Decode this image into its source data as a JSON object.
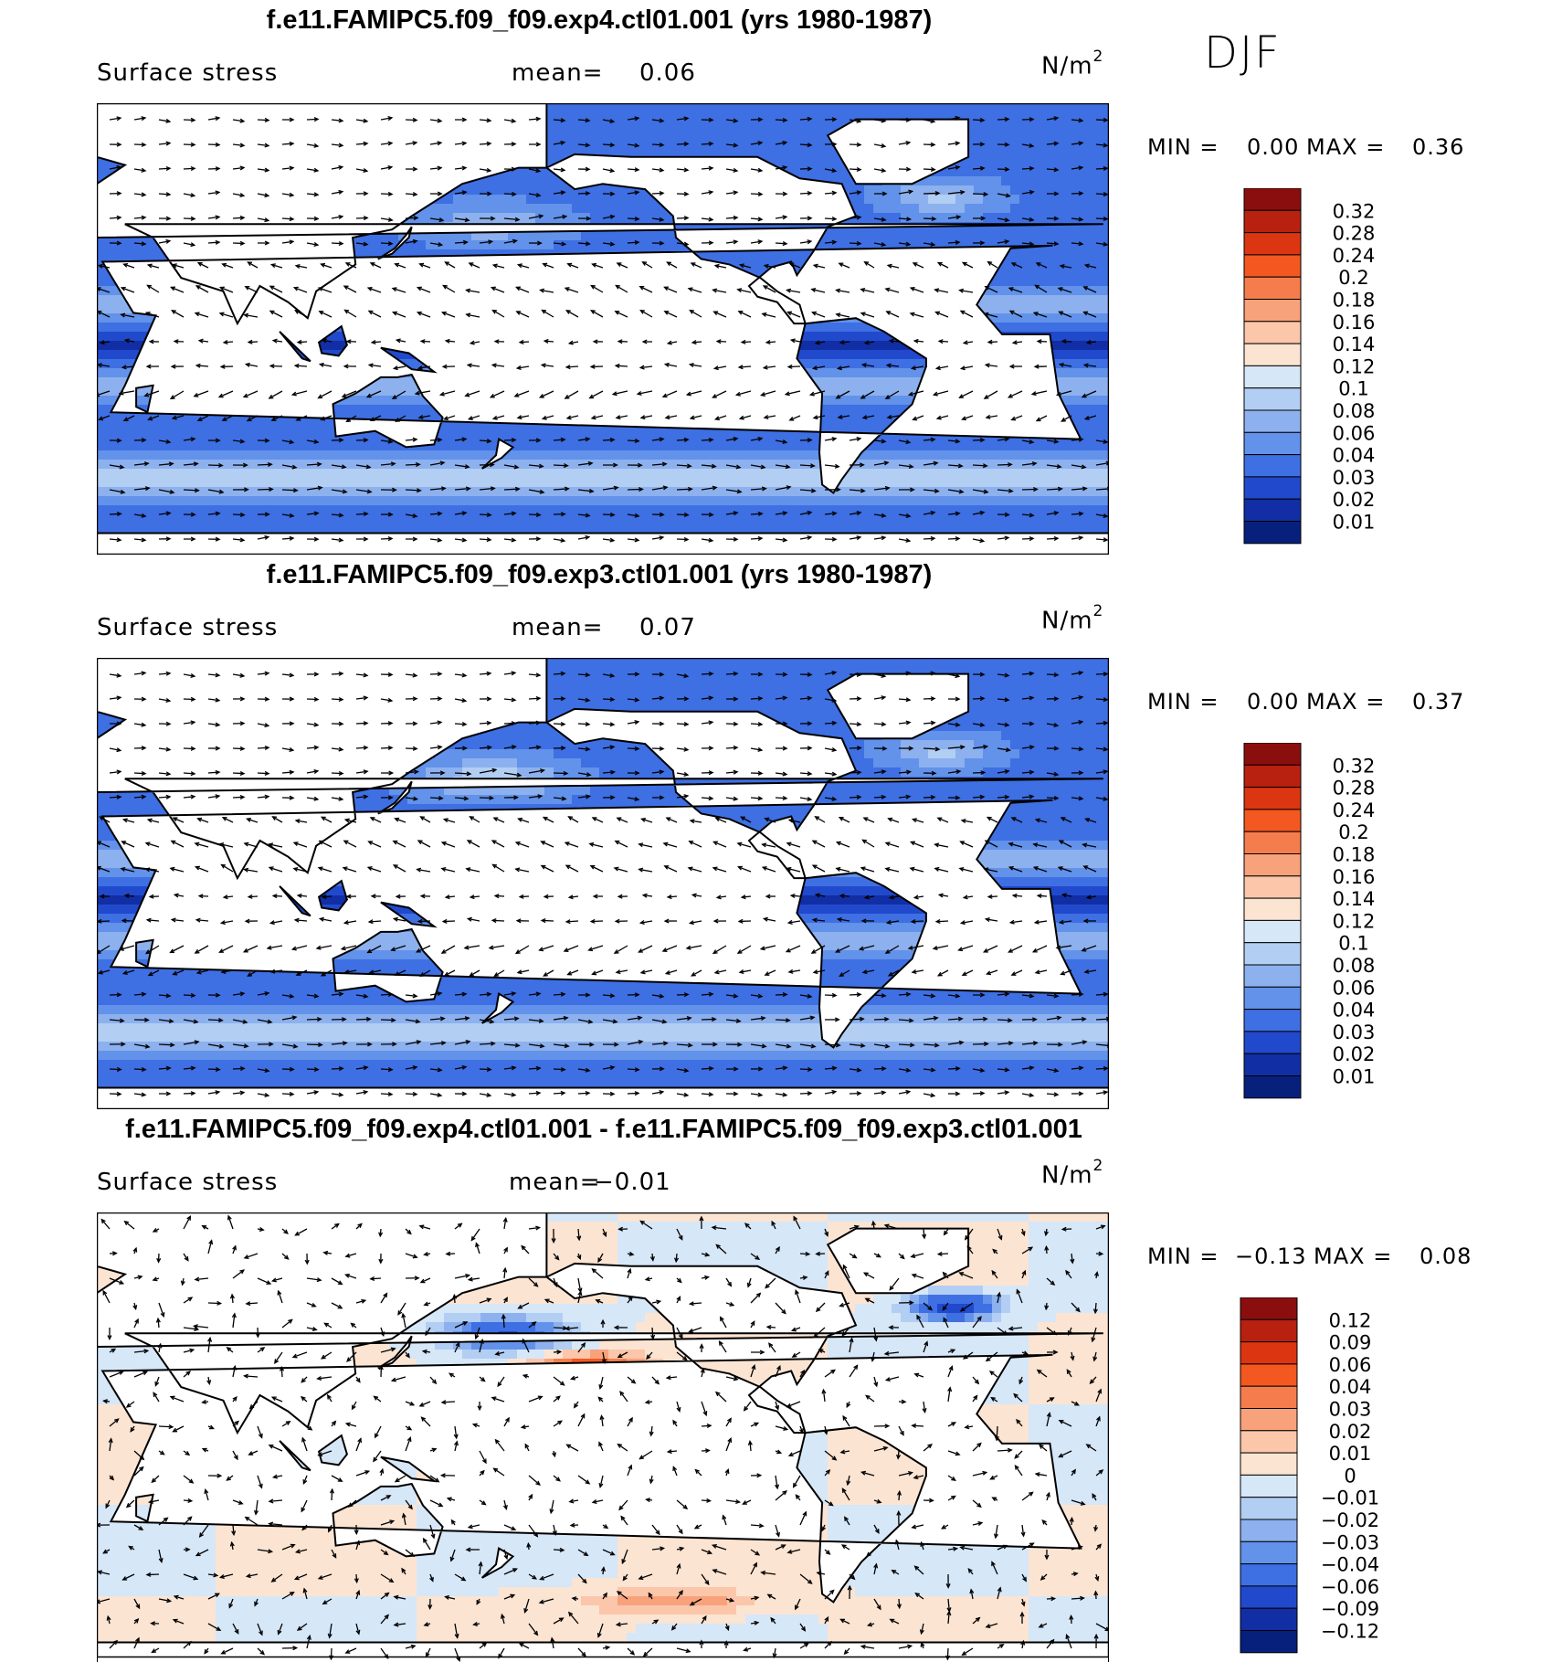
{
  "season": "DJF",
  "chart_data": [
    {
      "type": "heatmap",
      "title": "f.e11.FAMIPC5.f09_f09.exp4.ctl01.001 (yrs 1980-1987)",
      "variable": "Surface stress",
      "mean_label": "mean=",
      "mean": "0.06",
      "units_base": "N/m",
      "units_exp": "2",
      "min_label": "MIN =",
      "min": "0.00",
      "max_label": "MAX =",
      "max": "0.36",
      "overlay": "vectors",
      "colorbar": {
        "labels": [
          "0.32",
          "0.28",
          "0.24",
          "0.2",
          "0.18",
          "0.16",
          "0.14",
          "0.12",
          "0.1",
          "0.08",
          "0.06",
          "0.04",
          "0.03",
          "0.02",
          "0.01"
        ],
        "colors": [
          "#8b0e0e",
          "#b8200f",
          "#dc3512",
          "#f2581f",
          "#f57d4d",
          "#f8a27c",
          "#fbc6a9",
          "#fce4d2",
          "#d6e7f8",
          "#b2cef3",
          "#8db1ee",
          "#6292ea",
          "#3e6fe3",
          "#2149cc",
          "#112ea4",
          "#07207c"
        ]
      }
    },
    {
      "type": "heatmap",
      "title": "f.e11.FAMIPC5.f09_f09.exp3.ctl01.001 (yrs 1980-1987)",
      "variable": "Surface stress",
      "mean_label": "mean=",
      "mean": "0.07",
      "units_base": "N/m",
      "units_exp": "2",
      "min_label": "MIN =",
      "min": "0.00",
      "max_label": "MAX =",
      "max": "0.37",
      "overlay": "vectors",
      "colorbar": {
        "labels": [
          "0.32",
          "0.28",
          "0.24",
          "0.2",
          "0.18",
          "0.16",
          "0.14",
          "0.12",
          "0.1",
          "0.08",
          "0.06",
          "0.04",
          "0.03",
          "0.02",
          "0.01"
        ],
        "colors": [
          "#8b0e0e",
          "#b8200f",
          "#dc3512",
          "#f2581f",
          "#f57d4d",
          "#f8a27c",
          "#fbc6a9",
          "#fce4d2",
          "#d6e7f8",
          "#b2cef3",
          "#8db1ee",
          "#6292ea",
          "#3e6fe3",
          "#2149cc",
          "#112ea4",
          "#07207c"
        ]
      }
    },
    {
      "type": "heatmap",
      "title": "f.e11.FAMIPC5.f09_f09.exp4.ctl01.001 - f.e11.FAMIPC5.f09_f09.exp3.ctl01.001",
      "variable": "Surface stress",
      "mean_label": "mean=",
      "mean": "−0.01",
      "units_base": "N/m",
      "units_exp": "2",
      "min_label": "MIN =",
      "min": "−0.13",
      "max_label": "MAX =",
      "max": "0.08",
      "overlay": "vectors",
      "colorbar": {
        "labels": [
          "0.12",
          "0.09",
          "0.06",
          "0.04",
          "0.03",
          "0.02",
          "0.01",
          "0",
          "−0.01",
          "−0.02",
          "−0.03",
          "−0.04",
          "−0.06",
          "−0.09",
          "−0.12"
        ],
        "colors": [
          "#8b0e0e",
          "#b8200f",
          "#dc3512",
          "#f2581f",
          "#f57d4d",
          "#f8a27c",
          "#fbc6a9",
          "#fce4d2",
          "#d6e7f8",
          "#b2cef3",
          "#8db1ee",
          "#6292ea",
          "#3e6fe3",
          "#2149cc",
          "#112ea4",
          "#07207c"
        ]
      }
    }
  ]
}
